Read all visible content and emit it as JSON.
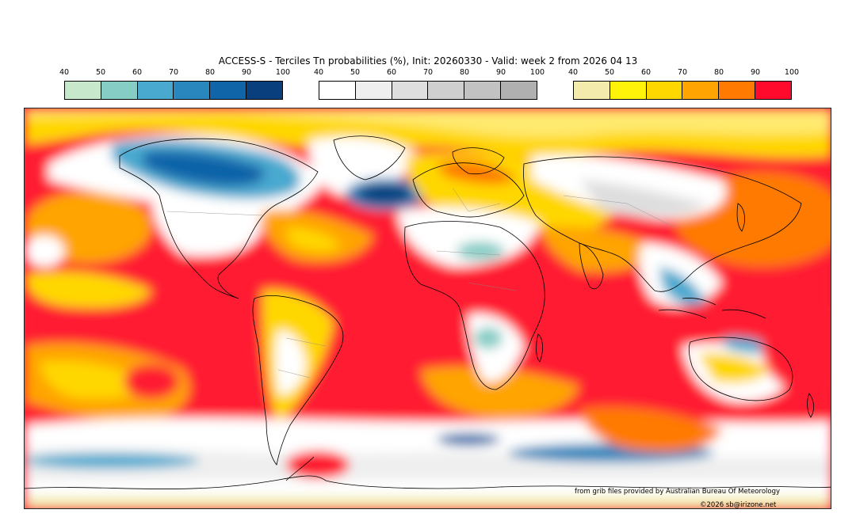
{
  "title": "ACCESS-S - Terciles Tn probabilities (%), Init: 20260330 - Valid: week 2 from 2026 04 13",
  "legends": [
    {
      "ticks": [
        "40",
        "50",
        "60",
        "70",
        "80",
        "90",
        "100"
      ],
      "colors": [
        "#c8e8cc",
        "#86cdc6",
        "#49a9cf",
        "#2a87bd",
        "#1064a8",
        "#0a3f7e"
      ]
    },
    {
      "ticks": [
        "40",
        "50",
        "60",
        "70",
        "80",
        "90",
        "100"
      ],
      "colors": [
        "#ffffff",
        "#efefef",
        "#dedede",
        "#cfcfcf",
        "#c2c2c2",
        "#b0b0b0"
      ]
    },
    {
      "ticks": [
        "40",
        "50",
        "60",
        "70",
        "80",
        "90",
        "100"
      ],
      "colors": [
        "#f2ebac",
        "#fff30a",
        "#ffd700",
        "#ffa400",
        "#ff7a00",
        "#ff0a2d"
      ]
    }
  ],
  "credit_source": "from grib files provided by Australian Bureau Of Meteorology",
  "credit_copyright": "©2026 sb@irizone.net"
}
